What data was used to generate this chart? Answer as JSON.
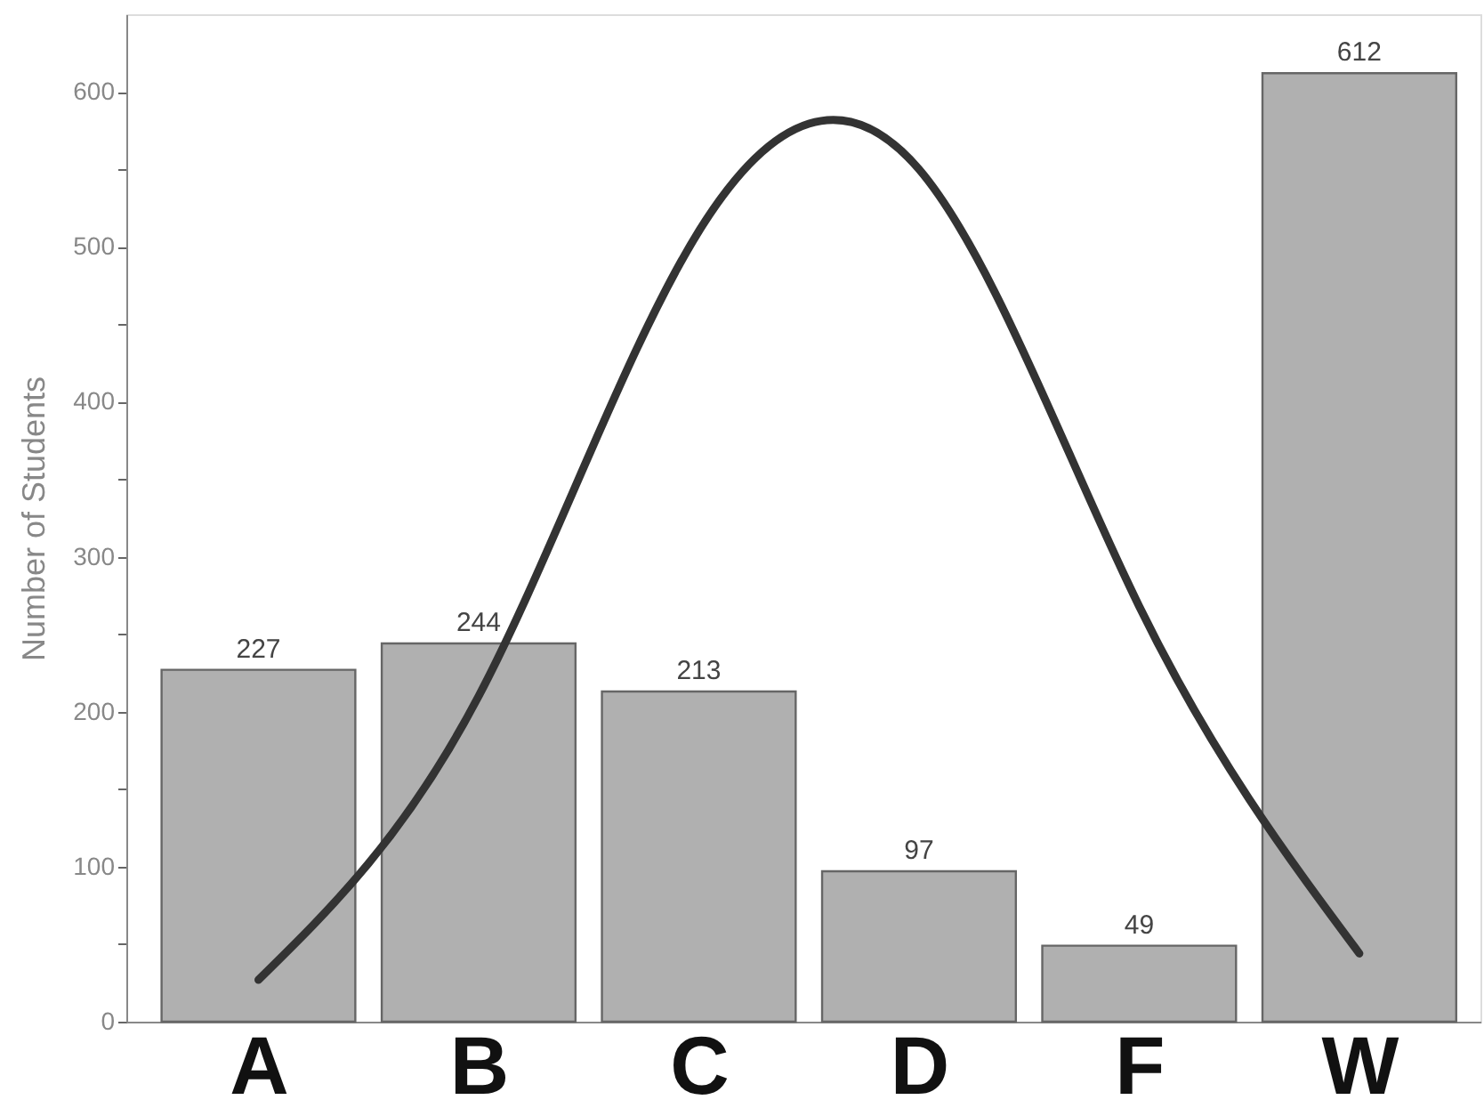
{
  "chart_data": {
    "type": "bar",
    "ylabel": "Number of Students",
    "categories": [
      "A",
      "B",
      "C",
      "D",
      "F",
      "W"
    ],
    "ylim": [
      0,
      650
    ],
    "yticks": [
      0,
      {
        "value": 50,
        "label": null
      },
      100,
      {
        "value": 150,
        "label": null
      },
      200,
      {
        "value": 250,
        "label": null
      },
      300,
      {
        "value": 350,
        "label": null
      },
      400,
      {
        "value": 450,
        "label": null
      },
      500,
      {
        "value": 550,
        "label": null
      },
      600
    ],
    "grid": false,
    "series": [
      {
        "color": "#b0b0b0",
        "values": [
          227,
          244,
          213,
          97,
          49,
          612
        ],
        "value_labels": [
          "227",
          "244",
          "213",
          "97",
          "49",
          "612"
        ]
      },
      {
        "type": "line",
        "color": "#333333",
        "line_style": "solid",
        "marker": "none",
        "values": [
          27,
          210,
          510,
          550,
          268,
          44
        ]
      }
    ]
  }
}
